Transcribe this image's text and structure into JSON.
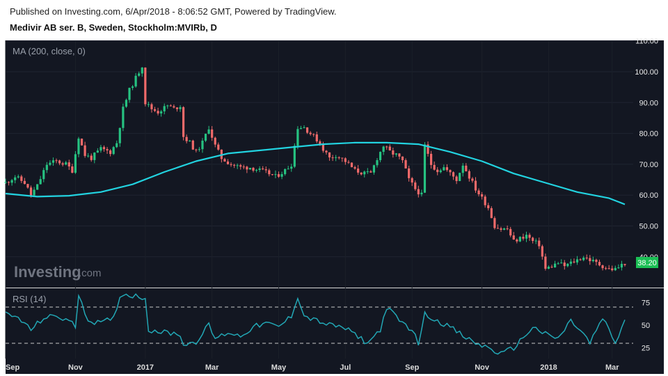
{
  "header": {
    "published": "Published on Investing.com, 6/Apr/2018 - 8:06:52 GMT, Powered by TradingView.",
    "instrument": "Medivir AB ser. B, Sweden, Stockholm:MVIRb, D"
  },
  "logo": {
    "main": "Investing",
    "suffix": ".com"
  },
  "colors": {
    "background": "#131722",
    "up": "#26c281",
    "down": "#f06a6a",
    "ma": "#22d3e0",
    "rsi": "#22a7b5",
    "last_price_bg": "#1bbf55",
    "text": "#eaeaea"
  },
  "chart_data": [
    {
      "type": "candlestick",
      "indicator_label": "MA (200, close, 0)",
      "x_ticks": [
        "Sep",
        "Nov",
        "2017",
        "Mar",
        "May",
        "Jul",
        "Sep",
        "Nov",
        "2018",
        "Mar"
      ],
      "y_ticks": [
        "110.00",
        "100.00",
        "90.00",
        "80.00",
        "70.00",
        "60.00",
        "50.00",
        "40.00"
      ],
      "ylim": [
        30,
        112
      ],
      "last_price": "38.20",
      "series": [
        {
          "name": "Price",
          "close_path": [
            [
              0,
              64
            ],
            [
              3,
              66
            ],
            [
              6,
              64
            ],
            [
              8,
              60
            ],
            [
              10,
              63
            ],
            [
              13,
              70
            ],
            [
              16,
              71
            ],
            [
              19,
              70
            ],
            [
              21,
              68
            ],
            [
              23,
              79
            ],
            [
              25,
              73
            ],
            [
              27,
              72
            ],
            [
              30,
              75
            ],
            [
              33,
              74
            ],
            [
              35,
              77
            ],
            [
              37,
              88
            ],
            [
              39,
              94
            ],
            [
              41,
              98
            ],
            [
              43,
              102
            ],
            [
              44,
              90
            ],
            [
              46,
              88
            ],
            [
              48,
              87
            ],
            [
              51,
              89
            ],
            [
              53,
              88
            ],
            [
              55,
              89
            ],
            [
              56,
              79
            ],
            [
              58,
              77
            ],
            [
              60,
              74
            ],
            [
              62,
              77
            ],
            [
              64,
              82
            ],
            [
              66,
              76
            ],
            [
              68,
              72
            ],
            [
              71,
              70
            ],
            [
              74,
              69
            ],
            [
              77,
              69
            ],
            [
              80,
              68
            ],
            [
              83,
              67
            ],
            [
              85,
              66
            ],
            [
              88,
              68
            ],
            [
              90,
              70
            ],
            [
              92,
              82
            ],
            [
              94,
              82
            ],
            [
              96,
              80
            ],
            [
              98,
              78
            ],
            [
              100,
              75
            ],
            [
              102,
              72
            ],
            [
              104,
              73
            ],
            [
              107,
              71
            ],
            [
              110,
              68
            ],
            [
              113,
              67
            ],
            [
              115,
              67
            ],
            [
              117,
              72
            ],
            [
              119,
              76
            ],
            [
              121,
              74
            ],
            [
              123,
              73
            ],
            [
              125,
              71
            ],
            [
              127,
              65
            ],
            [
              129,
              62
            ],
            [
              131,
              60
            ],
            [
              132,
              76
            ],
            [
              134,
              70
            ],
            [
              136,
              68
            ],
            [
              138,
              69
            ],
            [
              140,
              67
            ],
            [
              142,
              65
            ],
            [
              144,
              70
            ],
            [
              146,
              66
            ],
            [
              148,
              62
            ],
            [
              150,
              59
            ],
            [
              152,
              56
            ],
            [
              154,
              50
            ],
            [
              156,
              49
            ],
            [
              158,
              49
            ],
            [
              160,
              45
            ],
            [
              162,
              46
            ],
            [
              164,
              47
            ],
            [
              166,
              45
            ],
            [
              168,
              44
            ],
            [
              170,
              36
            ],
            [
              172,
              37
            ],
            [
              174,
              38
            ],
            [
              176,
              37
            ],
            [
              178,
              38
            ],
            [
              180,
              39
            ],
            [
              182,
              40
            ],
            [
              184,
              39
            ],
            [
              186,
              38
            ],
            [
              188,
              37
            ],
            [
              190,
              36
            ],
            [
              192,
              36
            ],
            [
              195,
              38
            ]
          ]
        },
        {
          "name": "MA (200, close, 0)",
          "x": [
            0,
            10,
            20,
            30,
            40,
            50,
            60,
            70,
            80,
            90,
            100,
            110,
            120,
            130,
            140,
            150,
            160,
            170,
            180,
            190,
            195
          ],
          "values": [
            60.5,
            59.5,
            59.8,
            61,
            63.5,
            67.5,
            71,
            73.5,
            74.5,
            75.5,
            76.5,
            77,
            77,
            76.5,
            74,
            71,
            67,
            64,
            61,
            59,
            57
          ]
        }
      ]
    },
    {
      "type": "line",
      "indicator_label": "RSI (14)",
      "y_ticks": [
        "75",
        "50",
        "25"
      ],
      "ylim": [
        10,
        95
      ],
      "reference_lines": [
        70,
        30
      ],
      "series": [
        {
          "name": "RSI (14)",
          "x": [
            0,
            4,
            8,
            12,
            16,
            20,
            22,
            23,
            26,
            30,
            34,
            36,
            38,
            40,
            44,
            45,
            50,
            55,
            56,
            60,
            64,
            66,
            70,
            74,
            78,
            82,
            86,
            90,
            92,
            94,
            98,
            102,
            106,
            110,
            114,
            118,
            120,
            124,
            128,
            130,
            132,
            136,
            140,
            144,
            148,
            152,
            156,
            160,
            164,
            166,
            170,
            174,
            178,
            182,
            184,
            188,
            192,
            195
          ],
          "values": [
            62,
            58,
            45,
            58,
            60,
            55,
            48,
            85,
            55,
            52,
            58,
            82,
            84,
            83,
            80,
            45,
            42,
            40,
            28,
            32,
            50,
            35,
            42,
            38,
            48,
            52,
            48,
            60,
            82,
            60,
            55,
            50,
            48,
            40,
            30,
            45,
            70,
            55,
            45,
            30,
            62,
            55,
            48,
            38,
            30,
            25,
            18,
            25,
            40,
            48,
            40,
            35,
            55,
            40,
            30,
            58,
            30,
            55
          ]
        }
      ]
    }
  ]
}
